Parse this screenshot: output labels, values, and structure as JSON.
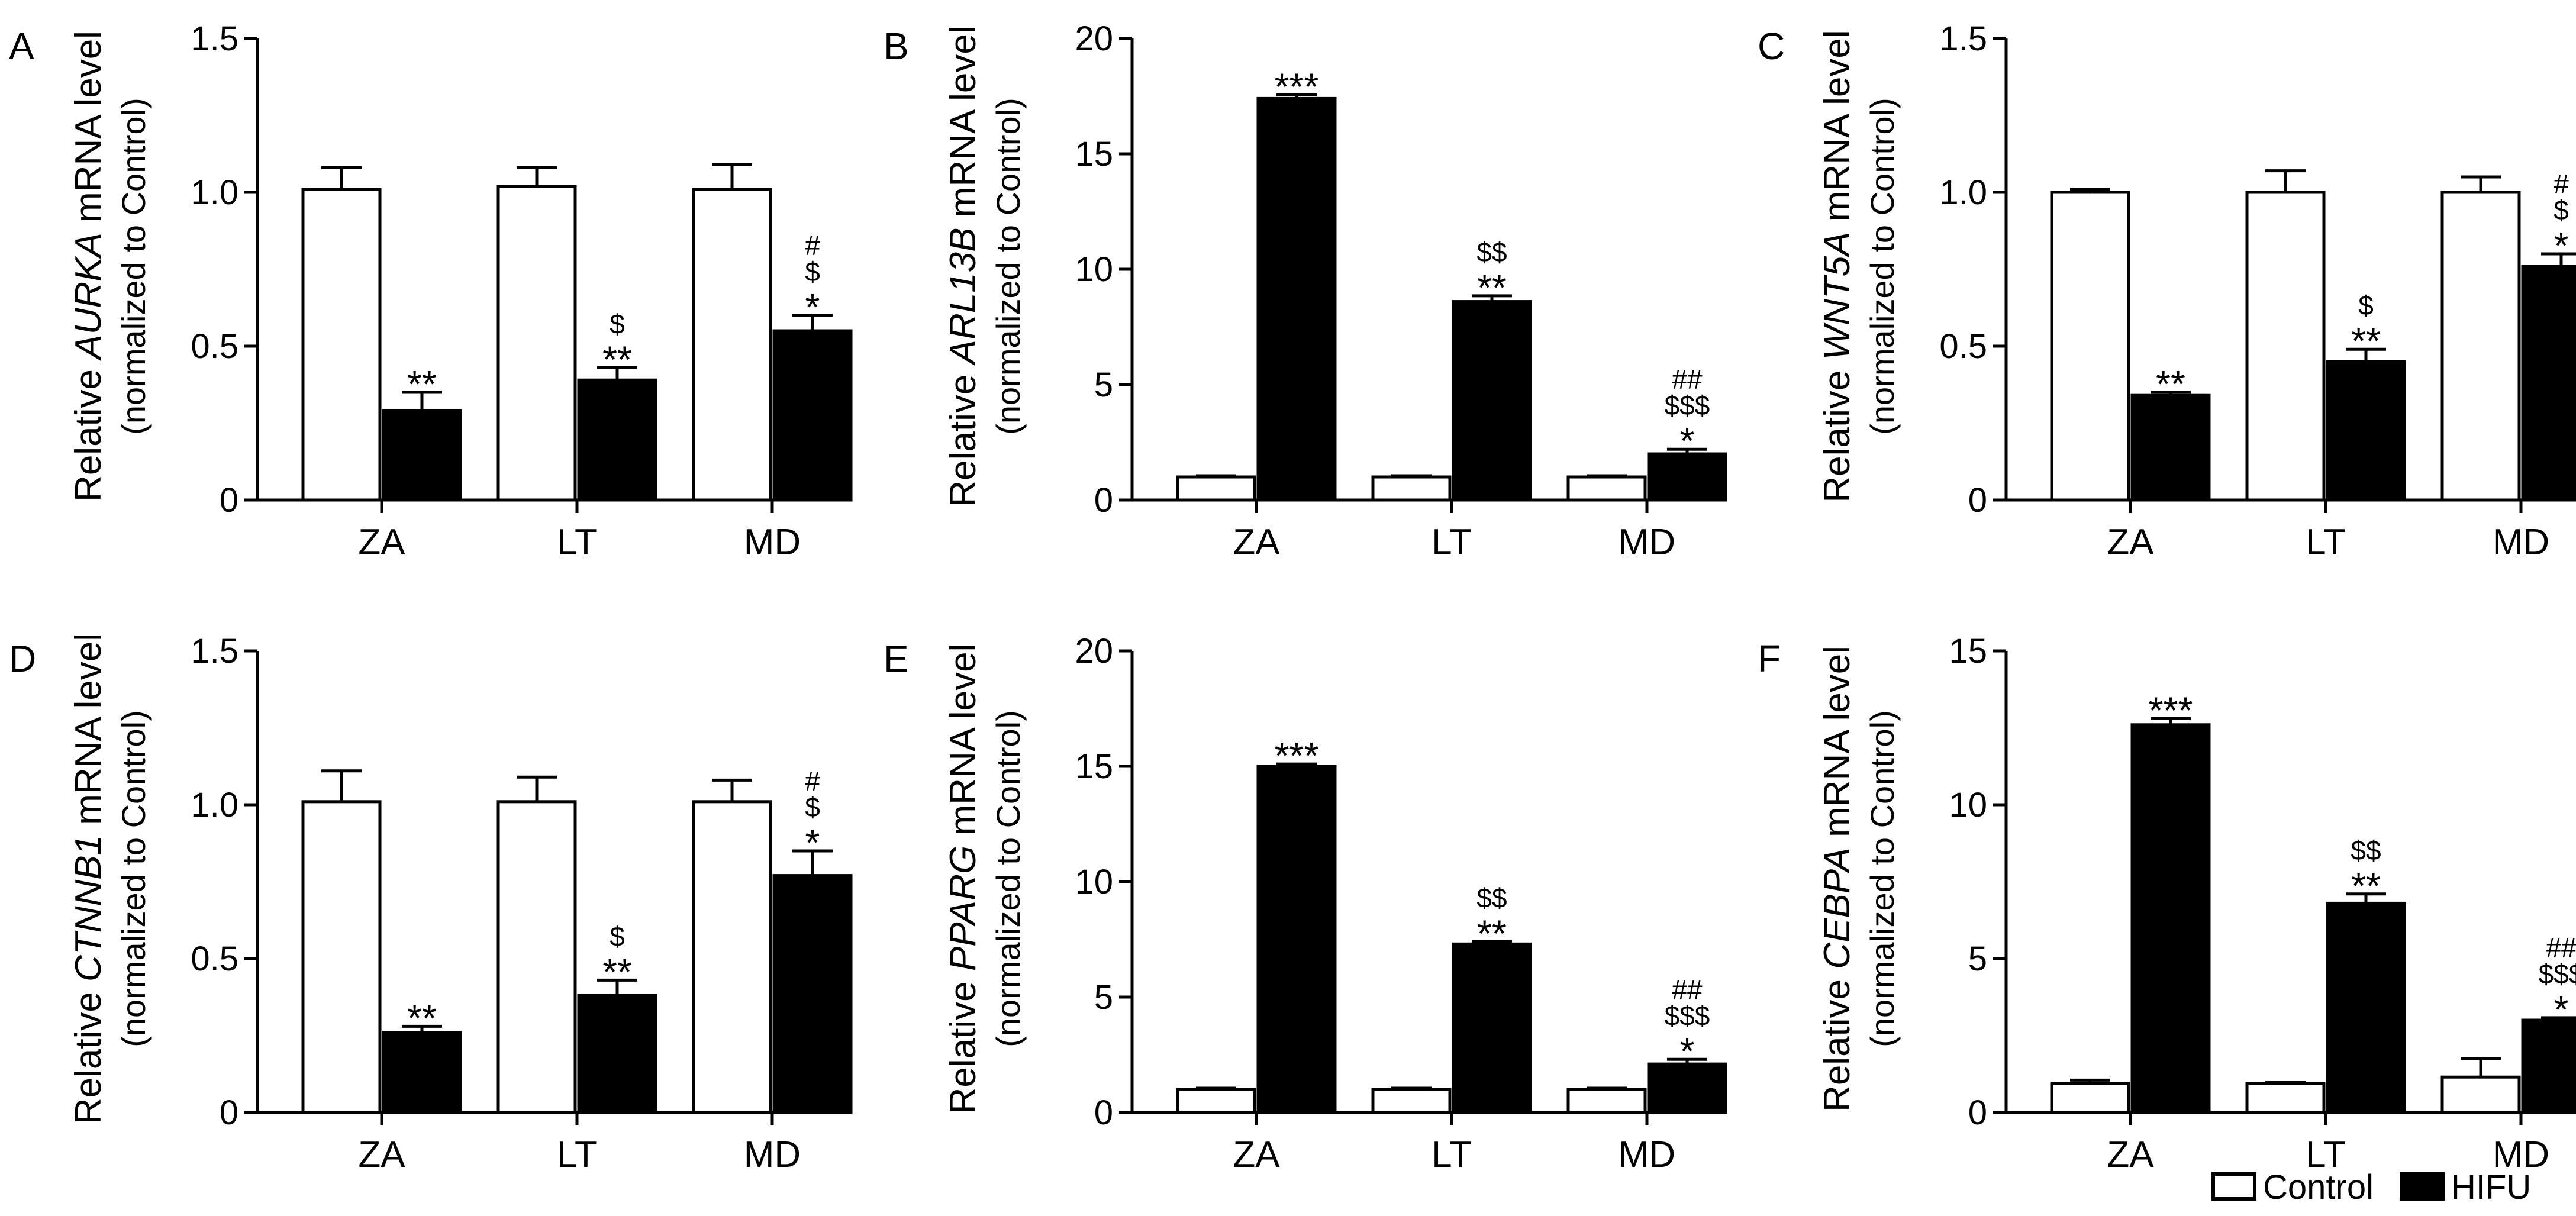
{
  "figure": {
    "legend": {
      "control_label": "Control",
      "hifu_label": "HIFU",
      "control_fill": "#ffffff",
      "hifu_fill": "#000000"
    }
  },
  "chart_data": [
    {
      "panel": "A",
      "type": "bar",
      "gene": "AURKA",
      "ylabel_prefix": "Relative ",
      "ylabel_suffix": " mRNA level",
      "ylabel_line2": "(normalized to Control)",
      "categories": [
        "ZA",
        "LT",
        "MD"
      ],
      "ylim": [
        0,
        1.5
      ],
      "yticks": [
        0,
        0.5,
        1.0,
        1.5
      ],
      "ytick_labels": [
        "0",
        "0.5",
        "1.0",
        "1.5"
      ],
      "series": [
        {
          "name": "Control",
          "values": [
            1.01,
            1.02,
            1.01
          ],
          "errors": [
            0.07,
            0.06,
            0.08
          ]
        },
        {
          "name": "HIFU",
          "values": [
            0.29,
            0.39,
            0.55
          ],
          "errors": [
            0.06,
            0.04,
            0.05
          ]
        }
      ],
      "annotations": [
        [
          "**"
        ],
        [
          "**",
          "$"
        ],
        [
          "*",
          "$",
          "#"
        ]
      ]
    },
    {
      "panel": "B",
      "type": "bar",
      "gene": "ARL13B",
      "ylabel_prefix": "Relative ",
      "ylabel_suffix": " mRNA level",
      "ylabel_line2": "(normalized to Control)",
      "categories": [
        "ZA",
        "LT",
        "MD"
      ],
      "ylim": [
        0,
        20
      ],
      "yticks": [
        0,
        5,
        10,
        15,
        20
      ],
      "ytick_labels": [
        "0",
        "5",
        "10",
        "15",
        "20"
      ],
      "series": [
        {
          "name": "Control",
          "values": [
            1.0,
            1.0,
            1.0
          ],
          "errors": [
            0.05,
            0.05,
            0.05
          ]
        },
        {
          "name": "HIFU",
          "values": [
            17.4,
            8.6,
            2.0
          ],
          "errors": [
            0.15,
            0.25,
            0.2
          ]
        }
      ],
      "annotations": [
        [
          "***"
        ],
        [
          "**",
          "$$"
        ],
        [
          "*",
          "$$$",
          "##"
        ]
      ]
    },
    {
      "panel": "C",
      "type": "bar",
      "gene": "WNT5A",
      "ylabel_prefix": "Relative ",
      "ylabel_suffix": " mRNA level",
      "ylabel_line2": "(normalized to Control)",
      "categories": [
        "ZA",
        "LT",
        "MD"
      ],
      "ylim": [
        0,
        1.5
      ],
      "yticks": [
        0,
        0.5,
        1.0,
        1.5
      ],
      "ytick_labels": [
        "0",
        "0.5",
        "1.0",
        "1.5"
      ],
      "series": [
        {
          "name": "Control",
          "values": [
            1.0,
            1.0,
            1.0
          ],
          "errors": [
            0.01,
            0.07,
            0.05
          ]
        },
        {
          "name": "HIFU",
          "values": [
            0.34,
            0.45,
            0.76
          ],
          "errors": [
            0.01,
            0.04,
            0.04
          ]
        }
      ],
      "annotations": [
        [
          "**"
        ],
        [
          "**",
          "$"
        ],
        [
          "*",
          "$",
          "#"
        ]
      ]
    },
    {
      "panel": "D",
      "type": "bar",
      "gene": "CTNNB1",
      "ylabel_prefix": "Relative ",
      "ylabel_suffix": " mRNA level",
      "ylabel_line2": "(normalized to Control)",
      "categories": [
        "ZA",
        "LT",
        "MD"
      ],
      "ylim": [
        0,
        1.5
      ],
      "yticks": [
        0,
        0.5,
        1.0,
        1.5
      ],
      "ytick_labels": [
        "0",
        "0.5",
        "1.0",
        "1.5"
      ],
      "series": [
        {
          "name": "Control",
          "values": [
            1.01,
            1.01,
            1.01
          ],
          "errors": [
            0.1,
            0.08,
            0.07
          ]
        },
        {
          "name": "HIFU",
          "values": [
            0.26,
            0.38,
            0.77
          ],
          "errors": [
            0.02,
            0.05,
            0.08
          ]
        }
      ],
      "annotations": [
        [
          "**"
        ],
        [
          "**",
          "$"
        ],
        [
          "*",
          "$",
          "#"
        ]
      ]
    },
    {
      "panel": "E",
      "type": "bar",
      "gene": "PPARG",
      "ylabel_prefix": "Relative ",
      "ylabel_suffix": " mRNA level",
      "ylabel_line2": "(normalized to Control)",
      "categories": [
        "ZA",
        "LT",
        "MD"
      ],
      "ylim": [
        0,
        20
      ],
      "yticks": [
        0,
        5,
        10,
        15,
        20
      ],
      "ytick_labels": [
        "0",
        "5",
        "10",
        "15",
        "20"
      ],
      "series": [
        {
          "name": "Control",
          "values": [
            1.0,
            1.0,
            1.0
          ],
          "errors": [
            0.05,
            0.05,
            0.05
          ]
        },
        {
          "name": "HIFU",
          "values": [
            15.0,
            7.3,
            2.1
          ],
          "errors": [
            0.1,
            0.1,
            0.2
          ]
        }
      ],
      "annotations": [
        [
          "***"
        ],
        [
          "**",
          "$$"
        ],
        [
          "*",
          "$$$",
          "##"
        ]
      ]
    },
    {
      "panel": "F",
      "type": "bar",
      "gene": "CEBPA",
      "ylabel_prefix": "Relative ",
      "ylabel_suffix": " mRNA level",
      "ylabel_line2": "(normalized to Control)",
      "categories": [
        "ZA",
        "LT",
        "MD"
      ],
      "ylim": [
        0,
        15
      ],
      "yticks": [
        0,
        5,
        10,
        15
      ],
      "ytick_labels": [
        "0",
        "5",
        "10",
        "15"
      ],
      "series": [
        {
          "name": "Control",
          "values": [
            0.95,
            0.95,
            1.15
          ],
          "errors": [
            0.1,
            0.02,
            0.6
          ]
        },
        {
          "name": "HIFU",
          "values": [
            12.6,
            6.8,
            3.0
          ],
          "errors": [
            0.2,
            0.3,
            0.08
          ]
        }
      ],
      "annotations": [
        [
          "***"
        ],
        [
          "**",
          "$$"
        ],
        [
          "*",
          "$$$",
          "##"
        ]
      ]
    }
  ]
}
